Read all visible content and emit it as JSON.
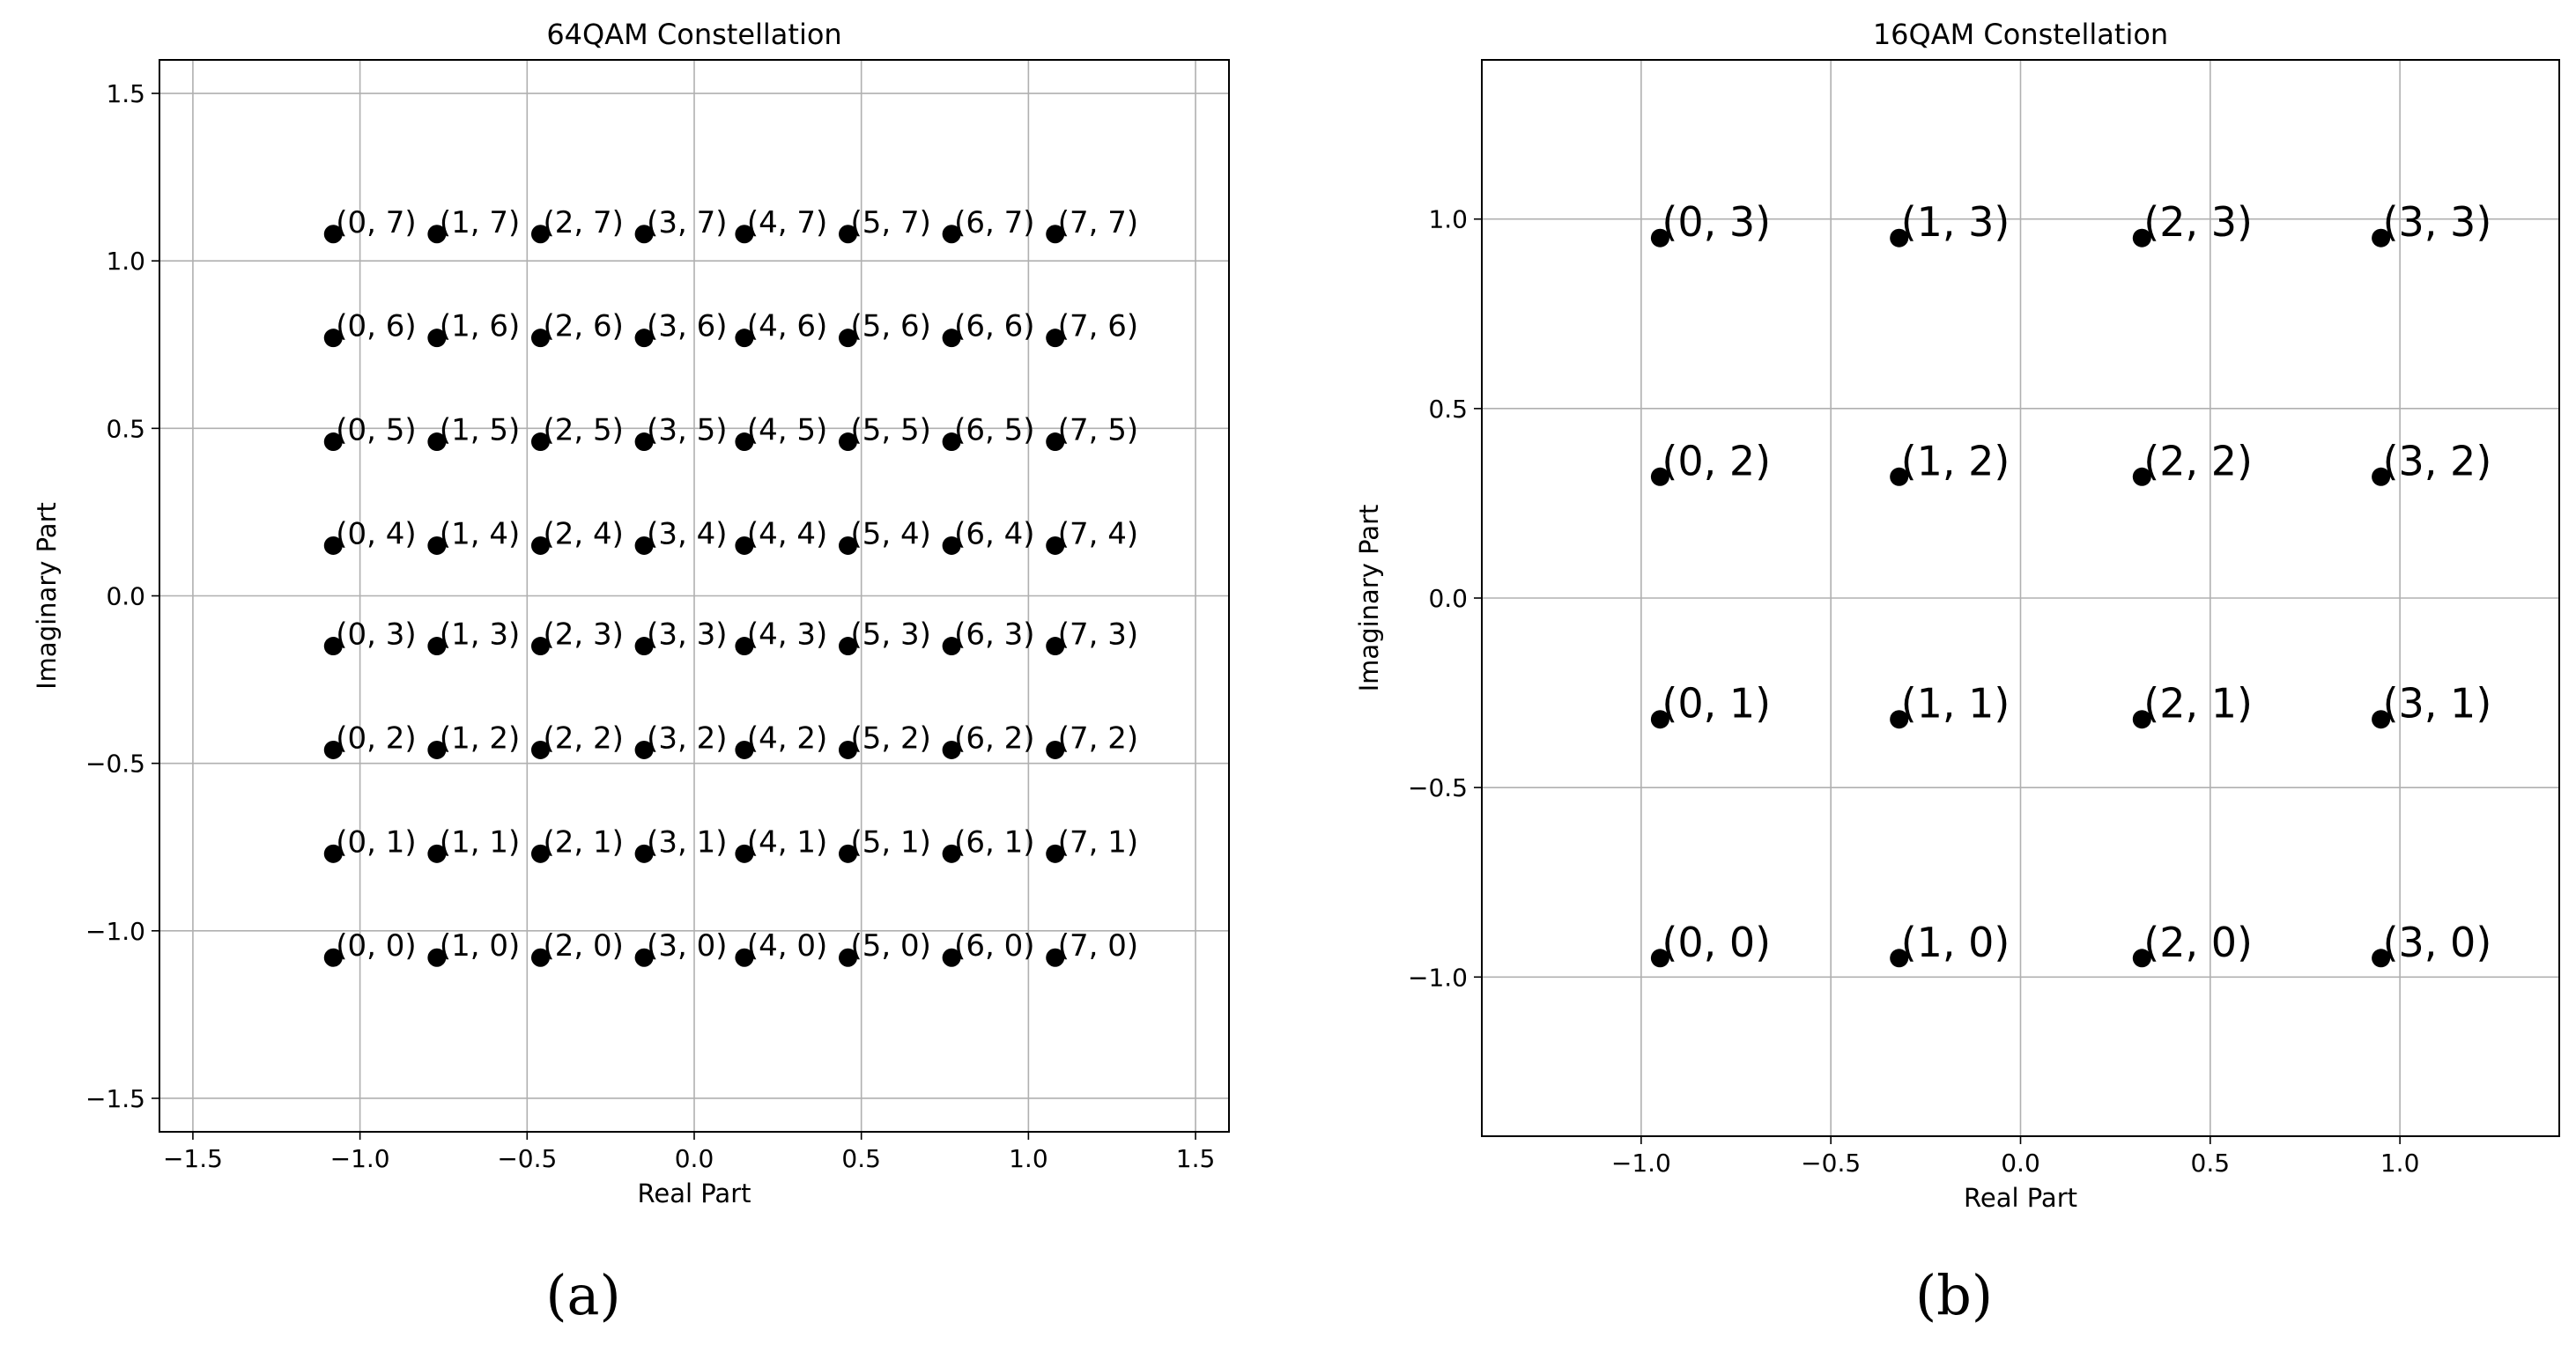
{
  "chart_data": [
    {
      "type": "scatter",
      "panel_label": "(a)",
      "title": "64QAM Constellation",
      "xlabel": "Real Part",
      "ylabel": "Imaginary Part",
      "xlim": [
        -1.6,
        1.6
      ],
      "ylim": [
        -1.6,
        1.6
      ],
      "xticks": [
        "−1.5",
        "−1.0",
        "−0.5",
        "0.0",
        "0.5",
        "1.0",
        "1.5"
      ],
      "xtick_values": [
        -1.5,
        -1.0,
        -0.5,
        0.0,
        0.5,
        1.0,
        1.5
      ],
      "yticks": [
        "−1.5",
        "−1.0",
        "−0.5",
        "0.0",
        "0.5",
        "1.0",
        "1.5"
      ],
      "ytick_values": [
        -1.5,
        -1.0,
        -0.5,
        0.0,
        0.5,
        1.0,
        1.5
      ],
      "grid": true,
      "marker_color": "#000000",
      "levels": [
        -1.08,
        -0.77,
        -0.46,
        -0.15,
        0.15,
        0.46,
        0.77,
        1.08
      ],
      "point_labels": [
        [
          "(0, 0)",
          "(0, 1)",
          "(0, 2)",
          "(0, 3)",
          "(0, 4)",
          "(0, 5)",
          "(0, 6)",
          "(0, 7)"
        ],
        [
          "(1, 0)",
          "(1, 1)",
          "(1, 2)",
          "(1, 3)",
          "(1, 4)",
          "(1, 5)",
          "(1, 6)",
          "(1, 7)"
        ],
        [
          "(2, 0)",
          "(2, 1)",
          "(2, 2)",
          "(2, 3)",
          "(2, 4)",
          "(2, 5)",
          "(2, 6)",
          "(2, 7)"
        ],
        [
          "(3, 0)",
          "(3, 1)",
          "(3, 2)",
          "(3, 3)",
          "(3, 4)",
          "(3, 5)",
          "(3, 6)",
          "(3, 7)"
        ],
        [
          "(4, 0)",
          "(4, 1)",
          "(4, 2)",
          "(4, 3)",
          "(4, 4)",
          "(4, 5)",
          "(4, 6)",
          "(4, 7)"
        ],
        [
          "(5, 0)",
          "(5, 1)",
          "(5, 2)",
          "(5, 3)",
          "(5, 4)",
          "(5, 5)",
          "(5, 6)",
          "(5, 7)"
        ],
        [
          "(6, 0)",
          "(6, 1)",
          "(6, 2)",
          "(6, 3)",
          "(6, 4)",
          "(6, 5)",
          "(6, 6)",
          "(6, 7)"
        ],
        [
          "(7, 0)",
          "(7, 1)",
          "(7, 2)",
          "(7, 3)",
          "(7, 4)",
          "(7, 5)",
          "(7, 6)",
          "(7, 7)"
        ]
      ]
    },
    {
      "type": "scatter",
      "panel_label": "(b)",
      "title": "16QAM Constellation",
      "xlabel": "Real Part",
      "ylabel": "Imaginary Part",
      "xlim": [
        -1.42,
        1.42
      ],
      "ylim": [
        -1.42,
        1.42
      ],
      "xticks": [
        "−1.0",
        "−0.5",
        "0.0",
        "0.5",
        "1.0"
      ],
      "xtick_values": [
        -1.0,
        -0.5,
        0.0,
        0.5,
        1.0
      ],
      "yticks": [
        "−1.0",
        "−0.5",
        "0.0",
        "0.5",
        "1.0"
      ],
      "ytick_values": [
        -1.0,
        -0.5,
        0.0,
        0.5,
        1.0
      ],
      "grid": true,
      "marker_color": "#000000",
      "levels": [
        -0.95,
        -0.32,
        0.32,
        0.95
      ],
      "point_labels": [
        [
          "(0, 0)",
          "(0, 1)",
          "(0, 2)",
          "(0, 3)"
        ],
        [
          "(1, 0)",
          "(1, 1)",
          "(1, 2)",
          "(1, 3)"
        ],
        [
          "(2, 0)",
          "(2, 1)",
          "(2, 2)",
          "(2, 3)"
        ],
        [
          "(3, 0)",
          "(3, 1)",
          "(3, 2)",
          "(3, 3)"
        ]
      ]
    }
  ]
}
